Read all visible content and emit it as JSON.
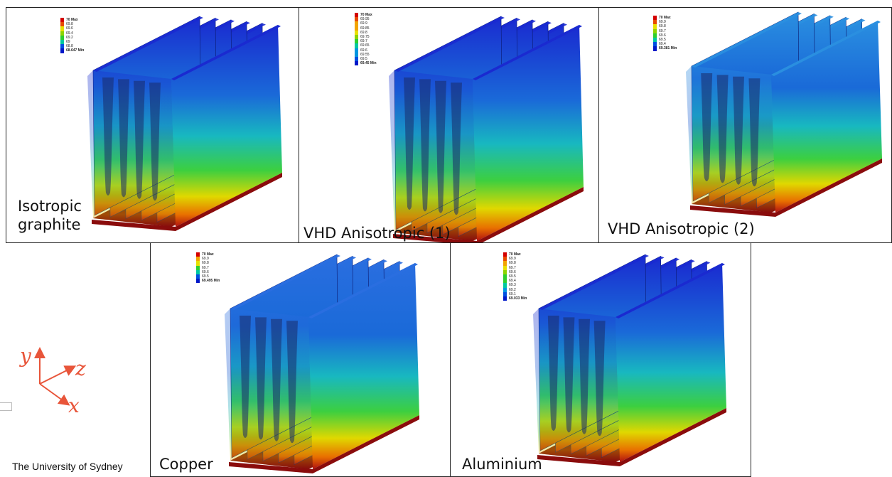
{
  "colors": {
    "scale": [
      "#d40000",
      "#e84a00",
      "#f2a400",
      "#e8e000",
      "#8ed400",
      "#2fcf2f",
      "#00c8a0",
      "#0096e0",
      "#0050e0",
      "#0018c8"
    ],
    "frame": "#222222",
    "axis_arrow": "#e8553a"
  },
  "panels": [
    {
      "id": "isotropic",
      "label": "Isotropic\ngraphite",
      "legend": [
        "70 Max",
        "69.8",
        "69.6",
        "69.4",
        "69.2",
        "69",
        "68.8",
        "68.647 Min"
      ],
      "top_color": "#1a2ad0"
    },
    {
      "id": "vhd1",
      "label": "VHD Anisotropic (1)",
      "legend": [
        "70 Max",
        "69.95",
        "69.9",
        "69.85",
        "69.8",
        "69.75",
        "69.7",
        "69.65",
        "69.6",
        "69.55",
        "69.5",
        "69.45 Min"
      ],
      "top_color": "#1a2ad0"
    },
    {
      "id": "vhd2",
      "label": "VHD Anisotropic (2)",
      "legend": [
        "70 Max",
        "69.9",
        "69.8",
        "69.7",
        "69.6",
        "69.5",
        "69.4",
        "69.381 Min"
      ],
      "top_color": "#2a8fe0"
    },
    {
      "id": "copper",
      "label": "Copper",
      "legend": [
        "70 Max",
        "69.9",
        "69.8",
        "69.7",
        "69.6",
        "69.5",
        "69.495 Min"
      ],
      "top_color": "#2a6ee0"
    },
    {
      "id": "aluminium",
      "label": "Aluminium",
      "legend": [
        "70 Max",
        "69.9",
        "69.8",
        "69.7",
        "69.6",
        "69.5",
        "69.4",
        "69.3",
        "69.2",
        "69.1",
        "69.033 Min"
      ],
      "top_color": "#1a2ad0"
    }
  ],
  "axes": {
    "y": "y",
    "z": "z",
    "x": "x"
  },
  "footer": "The University of Sydney"
}
